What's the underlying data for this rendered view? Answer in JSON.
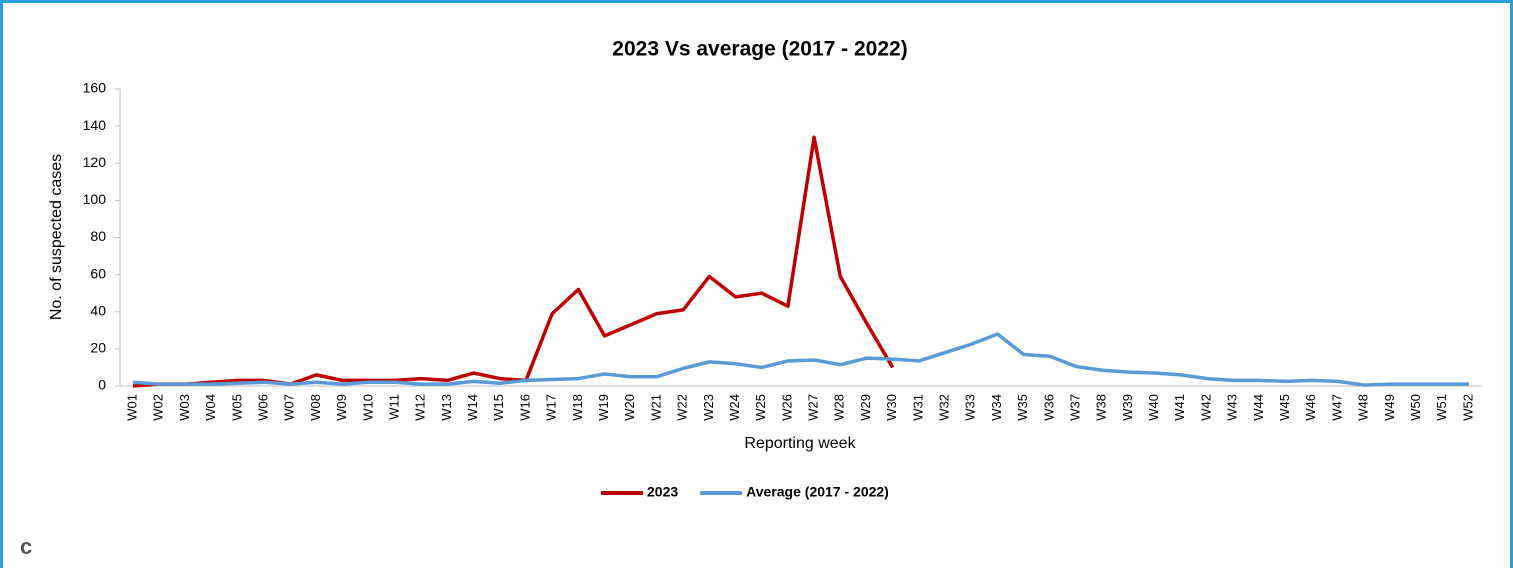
{
  "chart_data": {
    "type": "line",
    "title": "2023 Vs average (2017 - 2022)",
    "x_label": "Reporting week",
    "y_label": "No. of suspected cases",
    "panel_label": "c",
    "categories": [
      "W01",
      "W02",
      "W03",
      "W04",
      "W05",
      "W06",
      "W07",
      "W08",
      "W09",
      "W10",
      "W11",
      "W12",
      "W13",
      "W14",
      "W15",
      "W16",
      "W17",
      "W18",
      "W19",
      "W20",
      "W21",
      "W22",
      "W23",
      "W24",
      "W25",
      "W26",
      "W27",
      "W28",
      "W29",
      "W30",
      "W31",
      "W32",
      "W33",
      "W34",
      "W35",
      "W36",
      "W37",
      "W38",
      "W39",
      "W40",
      "W41",
      "W42",
      "W43",
      "W44",
      "W45",
      "W46",
      "W47",
      "W48",
      "W49",
      "W50",
      "W51",
      "W52"
    ],
    "series": [
      {
        "name": "2023",
        "color": "#c00000",
        "values": [
          0,
          1,
          1,
          2,
          3,
          3,
          1,
          6,
          3,
          3,
          3,
          4,
          3,
          7,
          4,
          3,
          39,
          52,
          27,
          33,
          39,
          41,
          59,
          48,
          50,
          43,
          134,
          59,
          34,
          10,
          null,
          null,
          null,
          null,
          null,
          null,
          null,
          null,
          null,
          null,
          null,
          null,
          null,
          null,
          null,
          null,
          null,
          null,
          null,
          null,
          null,
          null
        ]
      },
      {
        "name": "Average (2017 - 2022)",
        "color": "#5b9bd5",
        "values": [
          2,
          1,
          1,
          1,
          1.5,
          2,
          1,
          2,
          1,
          2,
          2,
          1,
          1,
          2.5,
          1.5,
          3,
          3.5,
          4,
          6.5,
          5,
          5,
          9.5,
          13,
          12,
          10,
          13.5,
          14,
          11.5,
          15,
          14.5,
          13.5,
          18,
          22.5,
          28,
          17,
          16,
          10.5,
          8.5,
          7.5,
          7,
          6,
          4,
          3,
          3,
          2.5,
          3,
          2.5,
          0.5,
          1,
          1,
          1,
          1
        ]
      }
    ],
    "ylim": [
      0,
      160
    ],
    "yticks": [
      0,
      20,
      40,
      60,
      80,
      100,
      120,
      140,
      160
    ],
    "grid": false,
    "legend": "bottom"
  }
}
